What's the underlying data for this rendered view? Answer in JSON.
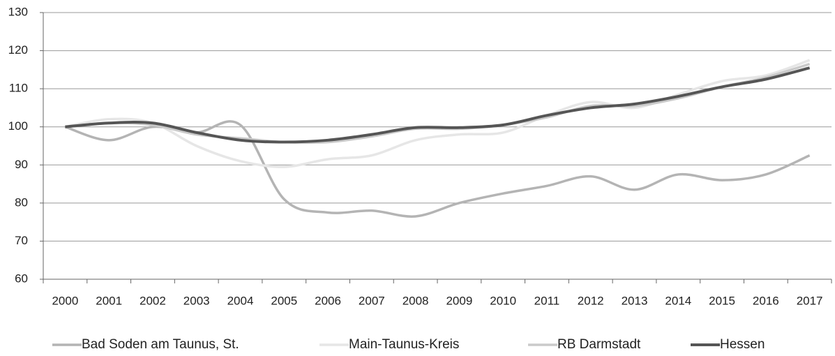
{
  "chart_data": {
    "type": "line",
    "categories": [
      "2000",
      "2001",
      "2002",
      "2003",
      "2004",
      "2005",
      "2006",
      "2007",
      "2008",
      "2009",
      "2010",
      "2011",
      "2012",
      "2013",
      "2014",
      "2015",
      "2016",
      "2017"
    ],
    "series": [
      {
        "name": "Bad Soden am Taunus, St.",
        "color": "#b4b4b4",
        "values": [
          100,
          96.5,
          100,
          98.5,
          100.5,
          81,
          77.5,
          78,
          76.5,
          80,
          82.5,
          84.5,
          87,
          83.5,
          87.5,
          86,
          87.5,
          92.5
        ]
      },
      {
        "name": "Main-Taunus-Kreis",
        "color": "#e6e6e6",
        "values": [
          100,
          102,
          101,
          95,
          91,
          89.5,
          91.5,
          92.5,
          96.5,
          98,
          98.5,
          103,
          106.5,
          105,
          108.5,
          112,
          113.5,
          117.5
        ]
      },
      {
        "name": "RB Darmstadt",
        "color": "#cacaca",
        "values": [
          100,
          101,
          100.5,
          98,
          97,
          96,
          96,
          97.5,
          99.5,
          99.5,
          100.5,
          102.5,
          105.5,
          105.5,
          107.5,
          110.5,
          113,
          116.5
        ]
      },
      {
        "name": "Hessen",
        "color": "#555555",
        "values": [
          100,
          101,
          101,
          98.5,
          96.5,
          96,
          96.5,
          98,
          99.8,
          99.8,
          100.5,
          103,
          105,
          106,
          108,
          110.5,
          112.5,
          115.5
        ]
      }
    ],
    "ylim": [
      60,
      130
    ],
    "yticks": [
      60,
      70,
      80,
      90,
      100,
      110,
      120,
      130
    ],
    "grid": true
  }
}
